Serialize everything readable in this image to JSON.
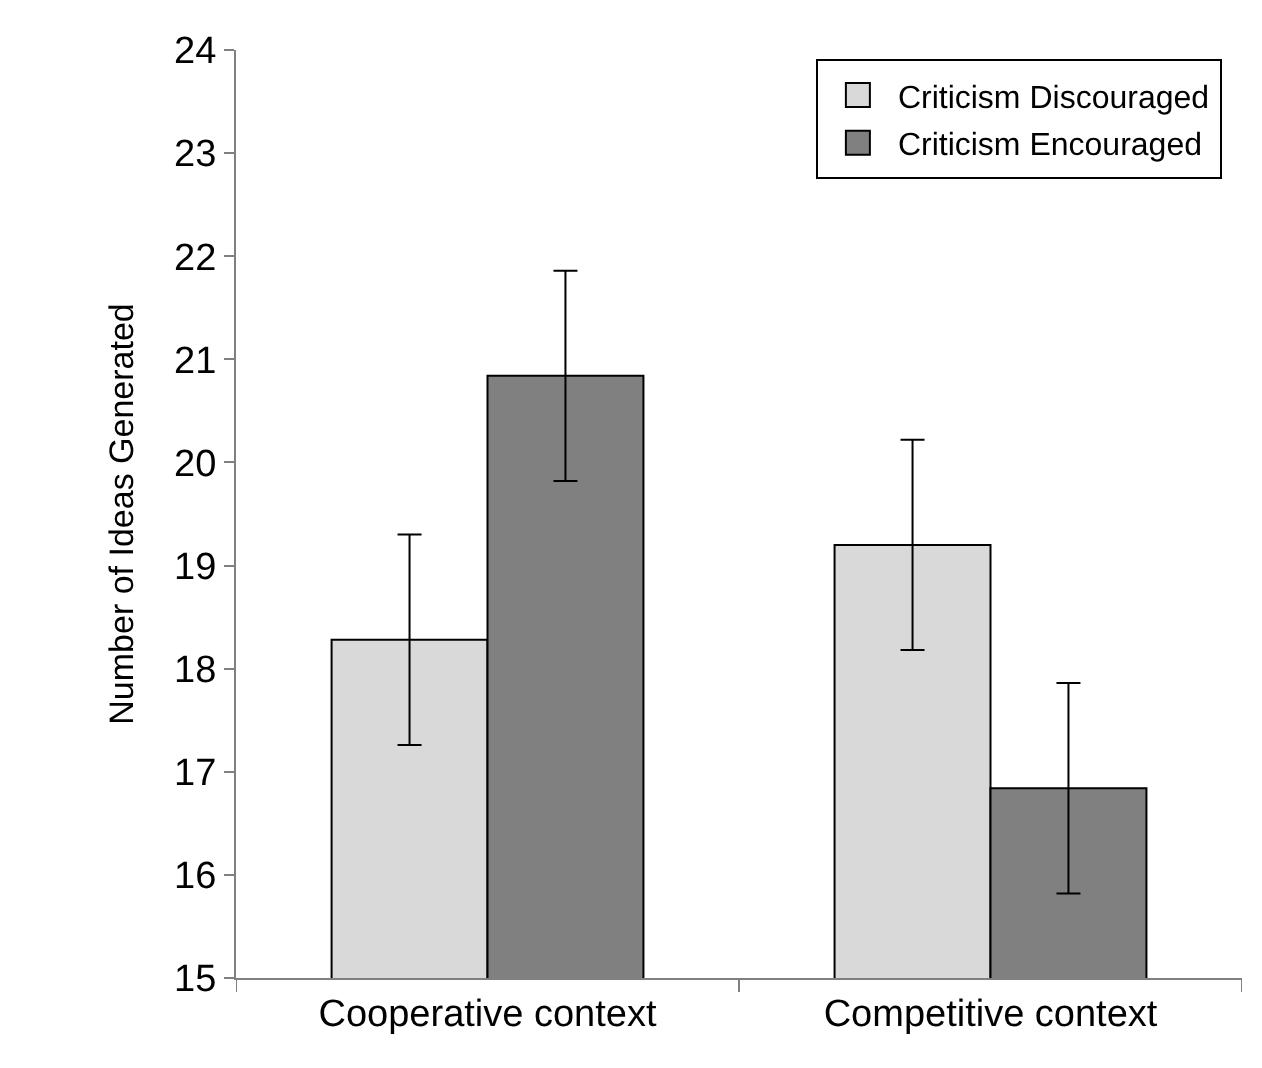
{
  "chart_data": {
    "type": "bar",
    "ylabel": "Number of Ideas Generated",
    "categories": [
      "Cooperative context",
      "Competitive context"
    ],
    "series": [
      {
        "name": "Criticism Discouraged",
        "color": "#d9d9d9",
        "values": [
          18.28,
          19.2
        ],
        "errors": [
          1.02,
          1.02
        ]
      },
      {
        "name": "Criticism Encouraged",
        "color": "#808080",
        "values": [
          20.84,
          16.84
        ],
        "errors": [
          1.02,
          1.02
        ]
      }
    ],
    "ylim": [
      15,
      24
    ],
    "yticks": [
      15,
      16,
      17,
      18,
      19,
      20,
      21,
      22,
      23,
      24
    ],
    "legend": "top right"
  }
}
